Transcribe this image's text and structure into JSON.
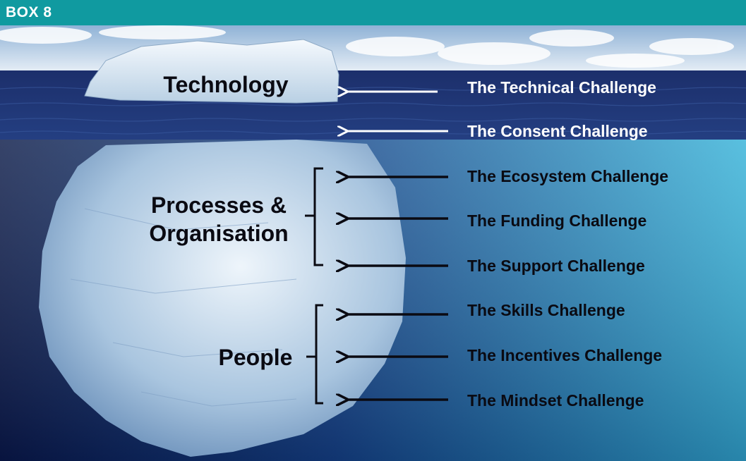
{
  "header": {
    "title": "BOX 8"
  },
  "diagram": {
    "above_water_label": "Technology",
    "groups": [
      {
        "label_lines": [
          "Processes &",
          "Organisation"
        ]
      },
      {
        "label_lines": [
          "People"
        ]
      }
    ],
    "challenges": [
      "The Technical Challenge",
      "The Consent Challenge",
      "The Ecosystem Challenge",
      "The Funding Challenge",
      "The Support Challenge",
      "The Skills Challenge",
      "The Incentives Challenge",
      "The Mindset Challenge"
    ]
  },
  "colors": {
    "header": "#109aa0",
    "sky": "#bcd3e8",
    "surface_water": "#1a3270",
    "deep_water_left": "#0a1f52",
    "deep_water_right": "#2aa0c8",
    "ice": "#dfeaf3"
  }
}
